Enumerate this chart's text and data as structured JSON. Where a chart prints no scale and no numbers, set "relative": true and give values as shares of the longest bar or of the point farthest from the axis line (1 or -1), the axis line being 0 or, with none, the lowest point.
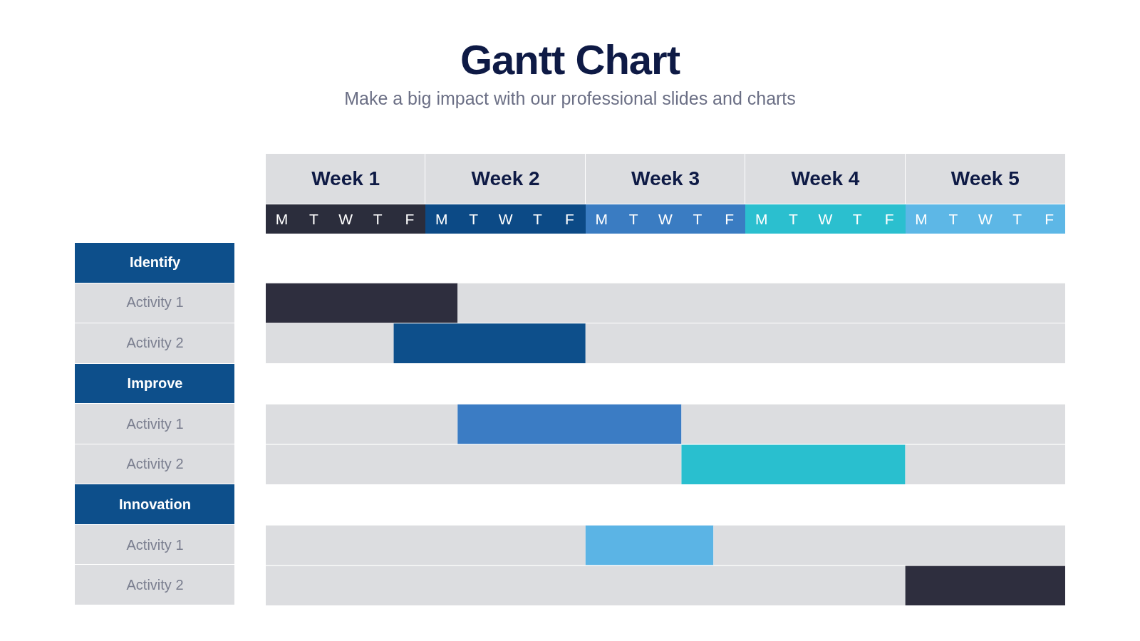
{
  "chart_data": {
    "type": "bar",
    "orientation": "horizontal",
    "stacked": true,
    "relative": true,
    "title": "Gantt Chart",
    "subtitle": "Make a big impact with our professional slides and charts",
    "categories": [
      "Identify",
      "Activity 1",
      "Activity 2",
      "Improve",
      "Activity 1",
      "Activity 2",
      "Innovation",
      "Activity 1",
      "Activity 2"
    ],
    "series": [
      {
        "color": "#dcdde0",
        "values": [
          null,
          0,
          0.16,
          null,
          0.24,
          0.52,
          null,
          0.4,
          0.8
        ]
      },
      {
        "colors": [
          null,
          "#2e2e3e",
          "#0d4f8b",
          null,
          "#3b7cc4",
          "#29bfcf",
          null,
          "#5bb4e5",
          "#2e2e3e"
        ],
        "values": [
          null,
          0.24,
          0.24,
          null,
          0.28,
          0.28,
          null,
          0.16,
          0.2
        ]
      },
      {
        "color": "#dcdde0",
        "values": [
          null,
          0.76,
          0.6,
          null,
          0.48,
          0.2,
          null,
          0.44,
          0
        ]
      }
    ],
    "annotations": [
      "Week 1",
      "Week 2",
      "Week 3",
      "Week 4",
      "Week 5",
      "M",
      "T",
      "W",
      "T",
      "F",
      "M",
      "T",
      "W",
      "T",
      "F",
      "M",
      "T",
      "W",
      "T",
      "F",
      "M",
      "T",
      "W",
      "T",
      "F",
      "M",
      "T",
      "W",
      "T",
      "F"
    ]
  }
}
